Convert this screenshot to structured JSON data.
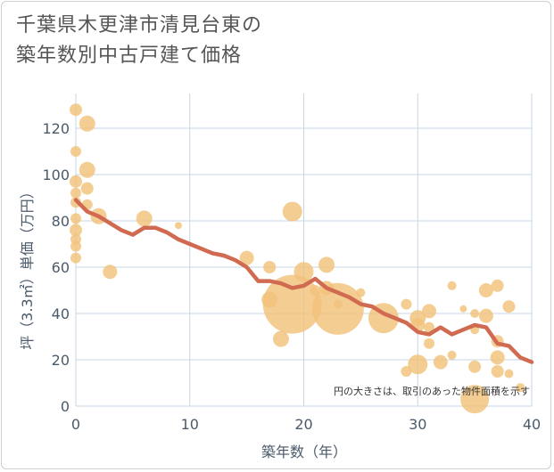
{
  "title_line1": "千葉県木更津市清見台東の",
  "title_line2": "築年数別中古戸建て価格",
  "chart_data": {
    "type": "scatter",
    "title": "千葉県木更津市清見台東の築年数別中古戸建て価格",
    "xlabel": "築年数（年）",
    "ylabel": "坪（3.3㎡）単価（万円）",
    "xlim": [
      0,
      40
    ],
    "ylim": [
      0,
      135
    ],
    "xticks": [
      0,
      10,
      20,
      30,
      40
    ],
    "yticks": [
      0,
      20,
      40,
      60,
      80,
      100,
      120
    ],
    "grid": true,
    "annotation": "円の大きさは、取引のあった物件面積を示す",
    "colors": {
      "bubble": "#f2c27b",
      "line": "#d06a50",
      "grid": "#c8d4e3"
    },
    "series": [
      {
        "type": "bubble",
        "points": [
          {
            "x": 0,
            "y": 128,
            "s": 7
          },
          {
            "x": 1,
            "y": 122,
            "s": 9
          },
          {
            "x": 0,
            "y": 110,
            "s": 6
          },
          {
            "x": 1,
            "y": 102,
            "s": 9
          },
          {
            "x": 0,
            "y": 97,
            "s": 7
          },
          {
            "x": 1,
            "y": 94,
            "s": 7
          },
          {
            "x": 0,
            "y": 92,
            "s": 6
          },
          {
            "x": 0,
            "y": 88,
            "s": 6
          },
          {
            "x": 1,
            "y": 87,
            "s": 6
          },
          {
            "x": 2,
            "y": 82,
            "s": 9
          },
          {
            "x": 0,
            "y": 81,
            "s": 6
          },
          {
            "x": 0,
            "y": 76,
            "s": 7
          },
          {
            "x": 0,
            "y": 72,
            "s": 6
          },
          {
            "x": 0,
            "y": 69,
            "s": 6
          },
          {
            "x": 0,
            "y": 64,
            "s": 6
          },
          {
            "x": 3,
            "y": 58,
            "s": 8
          },
          {
            "x": 6,
            "y": 81,
            "s": 9
          },
          {
            "x": 9,
            "y": 78,
            "s": 4
          },
          {
            "x": 15,
            "y": 64,
            "s": 8
          },
          {
            "x": 17,
            "y": 60,
            "s": 7
          },
          {
            "x": 17,
            "y": 46,
            "s": 9
          },
          {
            "x": 18,
            "y": 29,
            "s": 9
          },
          {
            "x": 19,
            "y": 84,
            "s": 11
          },
          {
            "x": 19,
            "y": 44,
            "s": 33
          },
          {
            "x": 20,
            "y": 58,
            "s": 11
          },
          {
            "x": 21,
            "y": 50,
            "s": 6
          },
          {
            "x": 22,
            "y": 61,
            "s": 9
          },
          {
            "x": 22,
            "y": 51,
            "s": 8
          },
          {
            "x": 23,
            "y": 42,
            "s": 29
          },
          {
            "x": 23,
            "y": 44,
            "s": 5
          },
          {
            "x": 25,
            "y": 49,
            "s": 5
          },
          {
            "x": 27,
            "y": 38,
            "s": 17
          },
          {
            "x": 29,
            "y": 44,
            "s": 6
          },
          {
            "x": 29,
            "y": 15,
            "s": 6
          },
          {
            "x": 30,
            "y": 38,
            "s": 9
          },
          {
            "x": 30,
            "y": 35,
            "s": 8
          },
          {
            "x": 30,
            "y": 18,
            "s": 11
          },
          {
            "x": 31,
            "y": 41,
            "s": 8
          },
          {
            "x": 31,
            "y": 34,
            "s": 6
          },
          {
            "x": 31,
            "y": 27,
            "s": 6
          },
          {
            "x": 32,
            "y": 19,
            "s": 8
          },
          {
            "x": 33,
            "y": 52,
            "s": 5
          },
          {
            "x": 33,
            "y": 22,
            "s": 5
          },
          {
            "x": 34,
            "y": 42,
            "s": 4
          },
          {
            "x": 35,
            "y": 40,
            "s": 5
          },
          {
            "x": 35,
            "y": 33,
            "s": 5
          },
          {
            "x": 35,
            "y": 17,
            "s": 7
          },
          {
            "x": 35,
            "y": 3,
            "s": 16
          },
          {
            "x": 36,
            "y": 50,
            "s": 8
          },
          {
            "x": 36,
            "y": 39,
            "s": 8
          },
          {
            "x": 37,
            "y": 52,
            "s": 7
          },
          {
            "x": 37,
            "y": 28,
            "s": 7
          },
          {
            "x": 37,
            "y": 21,
            "s": 8
          },
          {
            "x": 37,
            "y": 15,
            "s": 7
          },
          {
            "x": 38,
            "y": 43,
            "s": 7
          },
          {
            "x": 38,
            "y": 14,
            "s": 5
          },
          {
            "x": 39,
            "y": 8,
            "s": 5
          }
        ]
      },
      {
        "type": "line",
        "x": [
          0,
          1,
          2,
          3,
          4,
          5,
          6,
          7,
          8,
          9,
          10,
          11,
          12,
          13,
          14,
          15,
          16,
          17,
          18,
          19,
          20,
          21,
          22,
          23,
          24,
          25,
          26,
          27,
          28,
          29,
          30,
          31,
          32,
          33,
          34,
          35,
          36,
          37,
          38,
          39,
          40
        ],
        "y": [
          89,
          84,
          82,
          79,
          76,
          74,
          77,
          77,
          75,
          72,
          70,
          68,
          66,
          65,
          63,
          60,
          54,
          54,
          53,
          51,
          52,
          55,
          51,
          49,
          47,
          44,
          43,
          40,
          38,
          36,
          32,
          31,
          34,
          31,
          33,
          35,
          34,
          27,
          26,
          21,
          19
        ]
      }
    ]
  }
}
